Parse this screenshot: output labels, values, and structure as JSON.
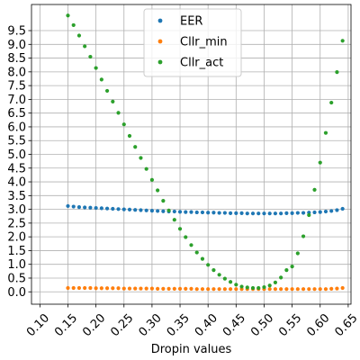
{
  "chart_data": {
    "type": "scatter",
    "xlabel": "Dropin values",
    "ylabel": "",
    "title": "",
    "xlim": [
      0.085,
      0.655
    ],
    "ylim": [
      -0.45,
      10.45
    ],
    "xticks": [
      "0.10",
      "0.15",
      "0.20",
      "0.25",
      "0.30",
      "0.35",
      "0.40",
      "0.45",
      "0.50",
      "0.55",
      "0.60",
      "0.65"
    ],
    "yticks": [
      "0.0",
      "0.5",
      "1.0",
      "1.5",
      "2.0",
      "2.5",
      "3.0",
      "3.5",
      "4.0",
      "4.5",
      "5.0",
      "5.5",
      "6.0",
      "6.5",
      "7.0",
      "7.5",
      "8.0",
      "8.5",
      "9.0",
      "9.5"
    ],
    "grid": true,
    "legend_position": "top-center",
    "x": [
      0.15,
      0.16,
      0.17,
      0.18,
      0.19,
      0.2,
      0.21,
      0.22,
      0.23,
      0.24,
      0.25,
      0.26,
      0.27,
      0.28,
      0.29,
      0.3,
      0.31,
      0.32,
      0.33,
      0.34,
      0.35,
      0.36,
      0.37,
      0.38,
      0.39,
      0.4,
      0.41,
      0.42,
      0.43,
      0.44,
      0.45,
      0.46,
      0.47,
      0.48,
      0.49,
      0.5,
      0.51,
      0.52,
      0.53,
      0.54,
      0.55,
      0.56,
      0.57,
      0.58,
      0.59,
      0.6,
      0.61,
      0.62,
      0.63,
      0.64
    ],
    "series": [
      {
        "name": "EER",
        "color": "#1f77b4",
        "values": [
          3.12,
          3.1,
          3.08,
          3.07,
          3.06,
          3.05,
          3.04,
          3.03,
          3.02,
          3.01,
          3.0,
          2.99,
          2.98,
          2.97,
          2.96,
          2.95,
          2.94,
          2.93,
          2.92,
          2.92,
          2.91,
          2.9,
          2.9,
          2.89,
          2.89,
          2.88,
          2.88,
          2.87,
          2.87,
          2.86,
          2.86,
          2.86,
          2.85,
          2.85,
          2.85,
          2.85,
          2.85,
          2.85,
          2.85,
          2.86,
          2.86,
          2.87,
          2.87,
          2.88,
          2.89,
          2.9,
          2.92,
          2.94,
          2.97,
          3.02
        ]
      },
      {
        "name": "Cllr_min",
        "color": "#ff7f0e",
        "values": [
          0.14,
          0.14,
          0.14,
          0.14,
          0.14,
          0.13,
          0.13,
          0.13,
          0.13,
          0.13,
          0.12,
          0.12,
          0.12,
          0.12,
          0.12,
          0.12,
          0.11,
          0.11,
          0.11,
          0.11,
          0.11,
          0.11,
          0.11,
          0.1,
          0.1,
          0.1,
          0.1,
          0.1,
          0.1,
          0.1,
          0.1,
          0.1,
          0.1,
          0.1,
          0.1,
          0.1,
          0.1,
          0.1,
          0.1,
          0.1,
          0.1,
          0.1,
          0.1,
          0.1,
          0.1,
          0.1,
          0.1,
          0.11,
          0.12,
          0.14
        ]
      },
      {
        "name": "Cllr_act",
        "color": "#2ca02c",
        "values": [
          10.05,
          9.7,
          9.32,
          8.93,
          8.55,
          8.14,
          7.72,
          7.31,
          6.92,
          6.51,
          6.09,
          5.67,
          5.27,
          4.87,
          4.47,
          4.07,
          3.69,
          3.31,
          2.96,
          2.62,
          2.29,
          1.99,
          1.7,
          1.43,
          1.2,
          0.98,
          0.79,
          0.62,
          0.48,
          0.36,
          0.26,
          0.19,
          0.16,
          0.14,
          0.14,
          0.17,
          0.23,
          0.34,
          0.52,
          0.79,
          0.92,
          1.4,
          2.02,
          2.79,
          3.71,
          4.7,
          5.78,
          6.88,
          7.99,
          9.13
        ]
      }
    ]
  }
}
